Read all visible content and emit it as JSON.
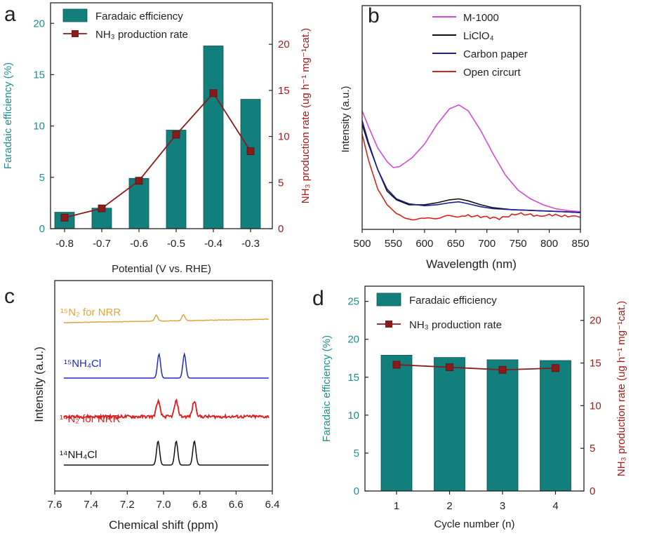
{
  "colors": {
    "teal": "#137f7c",
    "teal_edge": "#0c5653",
    "maroon": "#8b1a1a",
    "axis": "#222222",
    "teal_text": "#1f8f8f",
    "red_text": "#a11d1d",
    "magenta": "#d54ad6",
    "black": "#111111",
    "navy": "#1d1d9a",
    "red": "#d6231d",
    "orange": "#e3a43e",
    "blue": "#1f28c8",
    "brightred": "#e01a1a"
  },
  "chart_data": [
    {
      "panel": "a",
      "type": "bar",
      "categories": [
        "-0.8",
        "-0.7",
        "-0.6",
        "-0.5",
        "-0.4",
        "-0.3"
      ],
      "series": [
        {
          "name": "Faradaic efficiency",
          "axis": "left",
          "kind": "bar",
          "values": [
            1.6,
            2.0,
            4.9,
            9.6,
            17.8,
            12.6
          ]
        },
        {
          "name": "NH₃ production rate",
          "axis": "right",
          "kind": "line",
          "values": [
            1.2,
            2.2,
            5.2,
            10.2,
            14.7,
            8.4
          ]
        }
      ],
      "xlabel": "Potential (V vs. RHE)",
      "ylabel_left": "Faradaic efficiency (%)",
      "ylabel_right": "NH₃ production rate (ug h⁻¹ mg⁻¹cat.)",
      "ylim_left": [
        0,
        22
      ],
      "ylim_right": [
        0,
        24.5
      ],
      "yticks_left": [
        0,
        5,
        10,
        15,
        20
      ],
      "yticks_right": [
        0,
        5,
        10,
        15,
        20
      ],
      "legend": [
        "Faradaic efficiency",
        "NH₃ production rate"
      ]
    },
    {
      "panel": "b",
      "type": "line",
      "xlabel": "Wavelength (nm)",
      "ylabel": "Intensity (a.u.)",
      "xlim": [
        500,
        850
      ],
      "ylim": [
        0,
        1
      ],
      "xticks": [
        500,
        550,
        600,
        650,
        700,
        750,
        800,
        850
      ],
      "series": [
        {
          "name": "M-1000",
          "x": [
            500,
            510,
            525,
            540,
            550,
            560,
            580,
            600,
            620,
            640,
            655,
            670,
            690,
            710,
            730,
            750,
            770,
            790,
            810,
            830,
            850
          ],
          "y": [
            0.57,
            0.49,
            0.38,
            0.31,
            0.28,
            0.285,
            0.33,
            0.4,
            0.5,
            0.58,
            0.6,
            0.57,
            0.47,
            0.35,
            0.24,
            0.165,
            0.12,
            0.09,
            0.07,
            0.06,
            0.055
          ]
        },
        {
          "name": "LiClO₄",
          "x": [
            500,
            510,
            525,
            540,
            555,
            575,
            600,
            620,
            640,
            655,
            670,
            690,
            710,
            740,
            780,
            820,
            850
          ],
          "y": [
            0.5,
            0.4,
            0.27,
            0.16,
            0.115,
            0.09,
            0.09,
            0.1,
            0.115,
            0.12,
            0.11,
            0.09,
            0.075,
            0.065,
            0.06,
            0.055,
            0.05
          ]
        },
        {
          "name": "Carbon paper",
          "x": [
            500,
            510,
            525,
            540,
            555,
            575,
            600,
            620,
            640,
            655,
            670,
            690,
            710,
            740,
            780,
            820,
            850
          ],
          "y": [
            0.52,
            0.41,
            0.27,
            0.17,
            0.12,
            0.095,
            0.085,
            0.09,
            0.1,
            0.105,
            0.095,
            0.08,
            0.07,
            0.065,
            0.06,
            0.055,
            0.05
          ]
        },
        {
          "name": "Open circurt",
          "x": [
            500,
            510,
            525,
            540,
            555,
            575,
            600,
            620,
            640,
            660,
            690,
            720,
            750,
            780,
            800,
            830,
            850
          ],
          "y": [
            0.45,
            0.32,
            0.17,
            0.09,
            0.045,
            0.02,
            0.015,
            0.025,
            0.03,
            0.035,
            0.03,
            0.02,
            0.045,
            0.035,
            0.04,
            0.03,
            0.025
          ]
        }
      ],
      "legend": [
        "M-1000",
        "LiClO₄",
        "Carbon paper",
        "Open circurt"
      ]
    },
    {
      "panel": "c",
      "type": "line",
      "xlabel": "Chemical shift (ppm)",
      "ylabel": "Intensity (a.u.)",
      "xlim": [
        7.6,
        6.4
      ],
      "xticks": [
        "7.6",
        "7.4",
        "7.2",
        "7.0",
        "6.8",
        "6.6",
        "6.4"
      ],
      "series": [
        {
          "name": "¹⁵N₂ for NRR",
          "offset": 3,
          "noise": 0.05,
          "slope": 0.35,
          "peaks": [
            {
              "c": 7.04,
              "h": 0.6,
              "w": 0.012
            },
            {
              "c": 6.89,
              "h": 0.6,
              "w": 0.012
            }
          ]
        },
        {
          "name": "¹⁵NH₄Cl",
          "offset": 2,
          "noise": 0.0,
          "slope": 0.0,
          "peaks": [
            {
              "c": 7.025,
              "h": 0.95,
              "w": 0.012
            },
            {
              "c": 6.885,
              "h": 0.95,
              "w": 0.012
            }
          ]
        },
        {
          "name": "¹⁴N₂ for NRR",
          "offset": 1,
          "noise": 0.2,
          "slope": 0.0,
          "peaks": [
            {
              "c": 7.03,
              "h": 1.0,
              "w": 0.014
            },
            {
              "c": 6.93,
              "h": 1.0,
              "w": 0.014
            },
            {
              "c": 6.83,
              "h": 1.0,
              "w": 0.014
            }
          ]
        },
        {
          "name": "¹⁴NH₄Cl",
          "offset": 0,
          "noise": 0.0,
          "slope": 0.0,
          "peaks": [
            {
              "c": 7.03,
              "h": 0.95,
              "w": 0.012
            },
            {
              "c": 6.93,
              "h": 0.95,
              "w": 0.012
            },
            {
              "c": 6.83,
              "h": 0.95,
              "w": 0.012
            }
          ]
        }
      ],
      "labels": [
        "¹⁵N₂ for NRR",
        "¹⁵NH₄Cl",
        "¹⁴N₂ for NRR",
        "¹⁴NH₄Cl"
      ]
    },
    {
      "panel": "d",
      "type": "bar",
      "categories": [
        "1",
        "2",
        "3",
        "4"
      ],
      "series": [
        {
          "name": "Faradaic efficiency",
          "axis": "left",
          "kind": "bar",
          "values": [
            17.9,
            17.6,
            17.3,
            17.2
          ]
        },
        {
          "name": "NH₃ production rate",
          "axis": "right",
          "kind": "line",
          "values": [
            14.8,
            14.5,
            14.2,
            14.4
          ]
        }
      ],
      "xlabel": "Cycle number (n)",
      "ylabel_left": "Faradaic efficiency (%)",
      "ylabel_right": "NH₃ production rate (ug h⁻¹ mg⁻¹cat.)",
      "ylim_left": [
        0,
        27
      ],
      "ylim_right": [
        0,
        24
      ],
      "yticks_left": [
        0,
        5,
        10,
        15,
        20,
        25
      ],
      "yticks_right": [
        0,
        5,
        10,
        15,
        20
      ],
      "legend": [
        "Faradaic efficiency",
        "NH₃ production rate"
      ]
    }
  ]
}
